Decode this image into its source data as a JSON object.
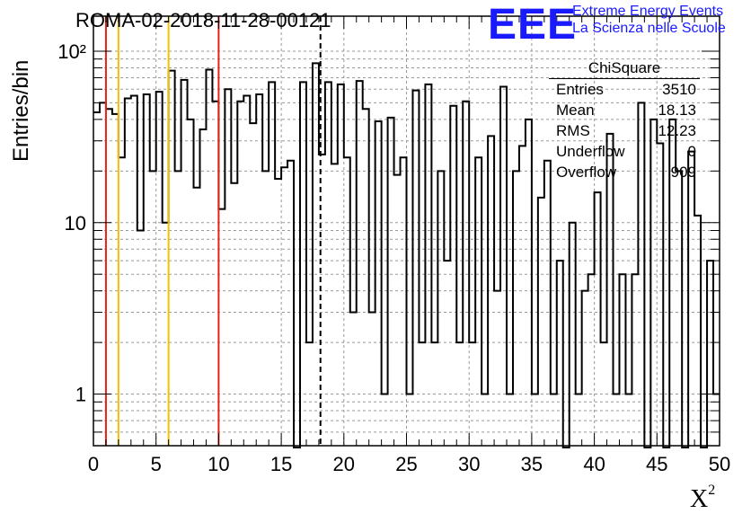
{
  "title": "ROMA-02-2018-11-28-00121",
  "logo": {
    "mark": "EEE",
    "line1": "Extreme Energy Events",
    "line2": "La Scienza nelle Scuole"
  },
  "axes": {
    "ylabel": "Entries/bin",
    "xlabel": "X",
    "xlabel_sup": "2"
  },
  "stats": {
    "title": "ChiSquare",
    "rows": [
      {
        "label": "Entries",
        "value": "3510"
      },
      {
        "label": "Mean",
        "value": "18.13"
      },
      {
        "label": "RMS",
        "value": "12.23"
      },
      {
        "label": "Underflow",
        "value": "0"
      },
      {
        "label": "Overflow",
        "value": "909"
      }
    ]
  },
  "colors": {
    "red_line": "#e8211a",
    "yellow_line": "#f5c000",
    "hist": "#000000",
    "grid": "#999999"
  },
  "chart_data": {
    "type": "histogram",
    "scale": "log",
    "xlim": [
      0,
      50
    ],
    "ylim": [
      0.5,
      160
    ],
    "x_ticks": [
      0,
      5,
      10,
      15,
      20,
      25,
      30,
      35,
      40,
      45,
      50
    ],
    "y_ticks": [
      {
        "value": 1,
        "label": "1"
      },
      {
        "value": 10,
        "label": "10"
      },
      {
        "value": 100,
        "label": "10²"
      }
    ],
    "bin_width": 0.5,
    "values": [
      44,
      50,
      46,
      43,
      24,
      53,
      55,
      9,
      56,
      20,
      58,
      10,
      77,
      20,
      68,
      40,
      16,
      35,
      78,
      51,
      12,
      60,
      17,
      51,
      55,
      38,
      56,
      20,
      66,
      18,
      21,
      23,
      0,
      66,
      2,
      85,
      25,
      66,
      22,
      64,
      24,
      3,
      67,
      46,
      3,
      39,
      1,
      41,
      19,
      24,
      1,
      59,
      2,
      64,
      2,
      20,
      6,
      48,
      2,
      51,
      2,
      24,
      1,
      32,
      4,
      62,
      1,
      20,
      28,
      40,
      1,
      14,
      23,
      1,
      6,
      0,
      10,
      1,
      4,
      5,
      15,
      2,
      33,
      1,
      5,
      1,
      5,
      50,
      0,
      40,
      29,
      0,
      40,
      20,
      0,
      26,
      11,
      0,
      6,
      1
    ],
    "vlines": [
      {
        "x": 1,
        "color": "red",
        "style": "solid"
      },
      {
        "x": 2,
        "color": "yellow",
        "style": "solid"
      },
      {
        "x": 6,
        "color": "yellow",
        "style": "solid"
      },
      {
        "x": 10,
        "color": "red",
        "style": "solid"
      },
      {
        "x": 18.13,
        "color": "black",
        "style": "dashed"
      }
    ]
  }
}
